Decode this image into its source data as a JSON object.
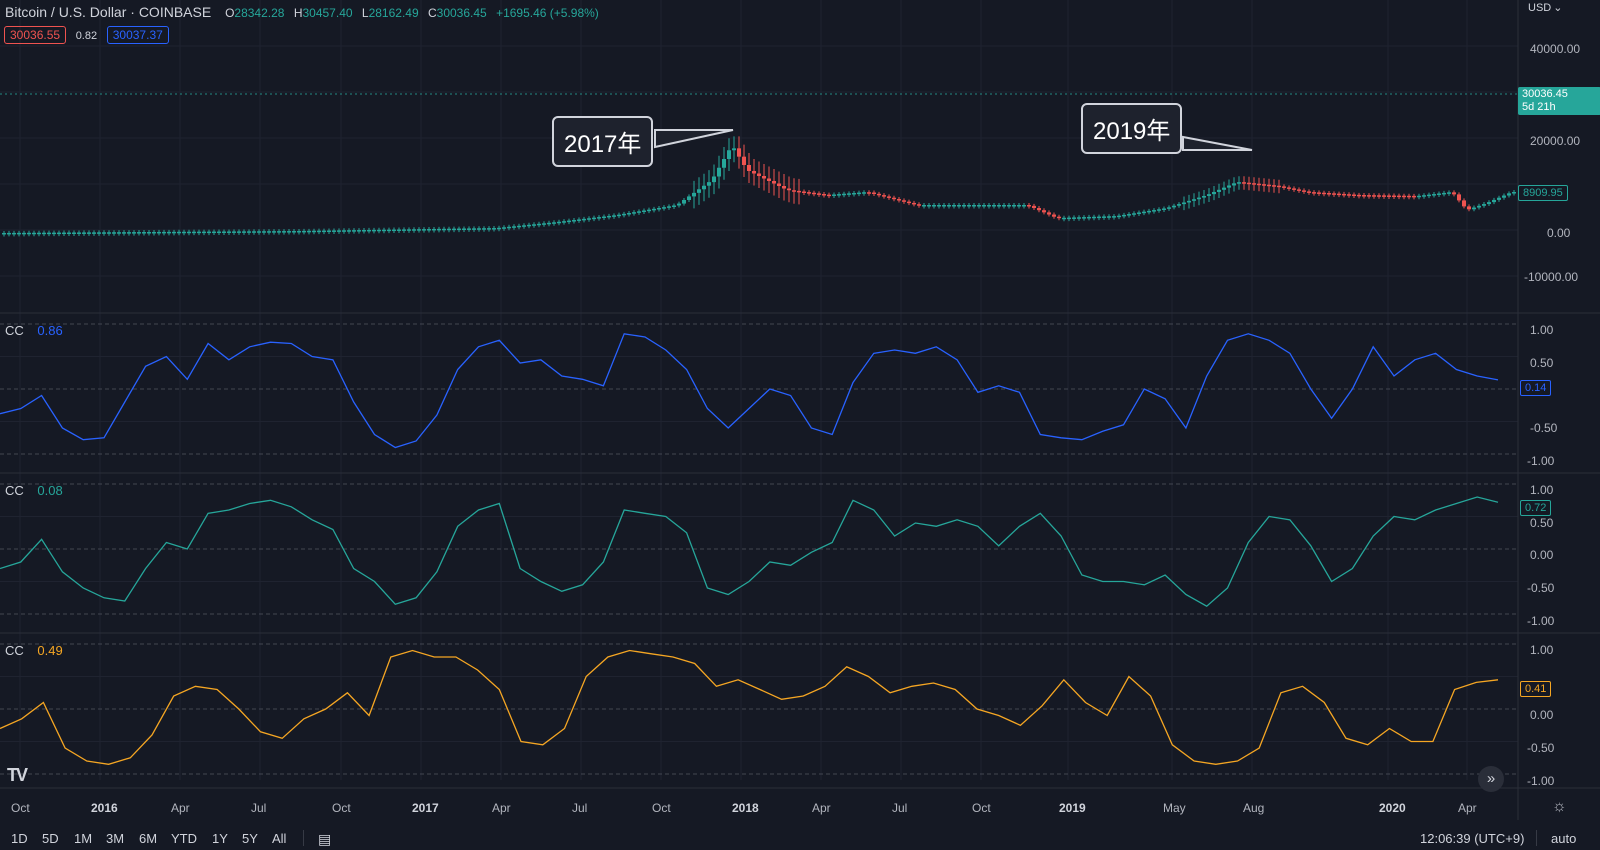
{
  "header": {
    "title": "Bitcoin / U.S. Dollar · COINBASE",
    "ohlc": [
      {
        "label": "O",
        "value": "28342.28"
      },
      {
        "label": "H",
        "value": "30457.40"
      },
      {
        "label": "L",
        "value": "28162.49"
      },
      {
        "label": "C",
        "value": "30036.45"
      }
    ],
    "change": "+1695.46 (+5.98%)",
    "bid": "30036.55",
    "spread": "0.82",
    "ask": "30037.37"
  },
  "currency": "USD",
  "price_scale": {
    "ticks": [
      "40000.00",
      "20000.00",
      "0.00",
      "-10000.00"
    ],
    "last_price": "30036.45",
    "countdown": "5d 21h",
    "marker_price": "8909.95"
  },
  "callouts": [
    {
      "text": "2017年"
    },
    {
      "text": "2019年"
    }
  ],
  "panels": [
    {
      "label": "CC",
      "value": "0.86",
      "last": "0.14",
      "color": "#2962ff"
    },
    {
      "label": "CC",
      "value": "0.08",
      "last": "0.72",
      "color": "#26a69a"
    },
    {
      "label": "CC",
      "value": "0.49",
      "last": "0.41",
      "color": "#f5a623"
    }
  ],
  "indicator_ticks": [
    "1.00",
    "0.50",
    "0.00",
    "-0.50",
    "-1.00"
  ],
  "time_axis": [
    {
      "text": "Oct",
      "bold": false
    },
    {
      "text": "2016",
      "bold": true
    },
    {
      "text": "Apr",
      "bold": false
    },
    {
      "text": "Jul",
      "bold": false
    },
    {
      "text": "Oct",
      "bold": false
    },
    {
      "text": "2017",
      "bold": true
    },
    {
      "text": "Apr",
      "bold": false
    },
    {
      "text": "Jul",
      "bold": false
    },
    {
      "text": "Oct",
      "bold": false
    },
    {
      "text": "2018",
      "bold": true
    },
    {
      "text": "Apr",
      "bold": false
    },
    {
      "text": "Jul",
      "bold": false
    },
    {
      "text": "Oct",
      "bold": false
    },
    {
      "text": "2019",
      "bold": true
    },
    {
      "text": "May",
      "bold": false
    },
    {
      "text": "Aug",
      "bold": false
    },
    {
      "text": "2020",
      "bold": true
    },
    {
      "text": "Apr",
      "bold": false
    }
  ],
  "toolbar": {
    "timeframes": [
      "1D",
      "5D",
      "1M",
      "3M",
      "6M",
      "YTD",
      "1Y",
      "5Y",
      "All"
    ],
    "clock": "12:06:39 (UTC+9)",
    "auto": "auto"
  },
  "colors": {
    "up": "#26a69a",
    "down": "#ef5350",
    "background": "#151924",
    "grid": "#222632"
  },
  "icons": [
    "tradingview-logo-icon",
    "calendar-range-icon",
    "scroll-right-icon",
    "settings-icon",
    "chevron-down-icon"
  ]
}
